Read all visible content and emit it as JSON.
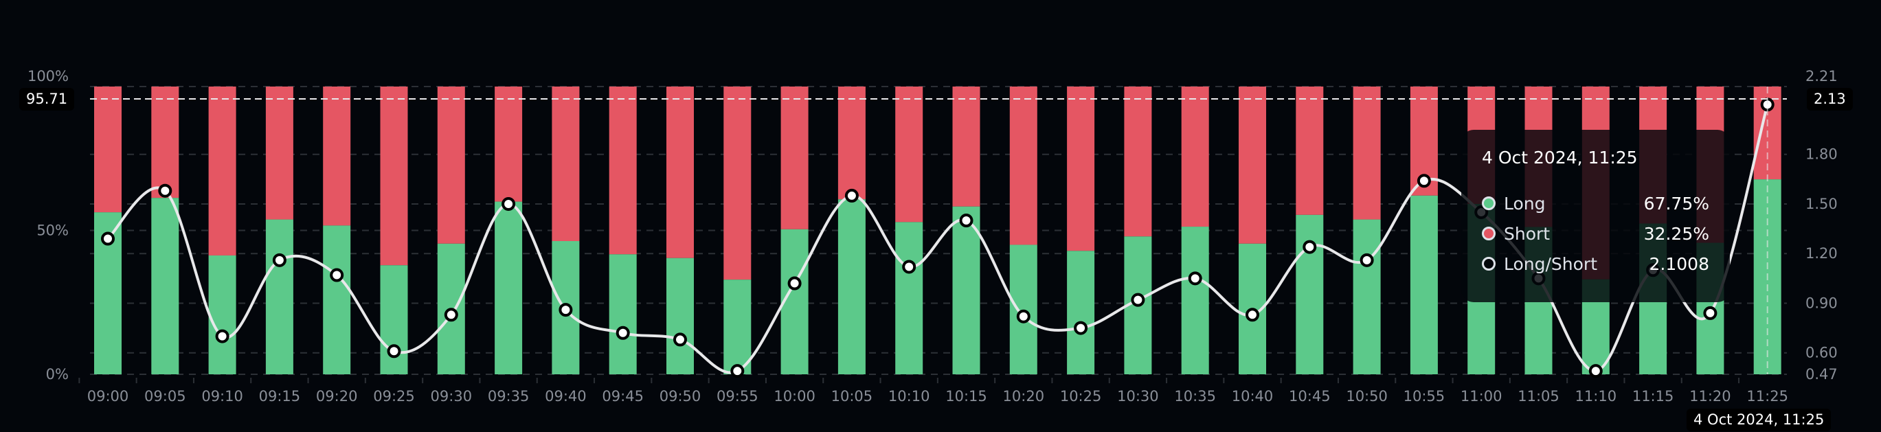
{
  "chart_data": {
    "type": "bar",
    "stacked": true,
    "categories": [
      "09:00",
      "09:05",
      "09:10",
      "09:15",
      "09:20",
      "09:25",
      "09:30",
      "09:35",
      "09:40",
      "09:45",
      "09:50",
      "09:55",
      "10:00",
      "10:05",
      "10:10",
      "10:15",
      "10:20",
      "10:25",
      "10:30",
      "10:35",
      "10:40",
      "10:45",
      "10:50",
      "10:55",
      "11:00",
      "11:05",
      "11:10",
      "11:15",
      "11:20",
      "11:25"
    ],
    "series": [
      {
        "name": "Long",
        "unit": "%",
        "color": "#5cc98a",
        "values": [
          56.3,
          61.3,
          41.3,
          53.8,
          51.7,
          37.9,
          45.4,
          60.0,
          46.3,
          41.7,
          40.4,
          32.9,
          50.4,
          60.8,
          52.9,
          58.3,
          45.0,
          42.9,
          47.9,
          51.3,
          45.4,
          55.4,
          53.8,
          62.1,
          59.2,
          51.2,
          33.0,
          52.4,
          45.7,
          67.75
        ]
      },
      {
        "name": "Short",
        "unit": "%",
        "color": "#e55663",
        "values": [
          43.7,
          38.7,
          58.7,
          46.2,
          48.3,
          62.1,
          54.6,
          40.0,
          53.7,
          58.3,
          59.6,
          67.1,
          49.6,
          39.2,
          47.1,
          41.7,
          55.0,
          57.1,
          52.1,
          48.7,
          54.6,
          44.6,
          46.2,
          37.9,
          40.8,
          48.8,
          67.0,
          47.6,
          54.3,
          32.25
        ]
      },
      {
        "name": "Long/Short",
        "type": "line",
        "axis": "right",
        "color": "#e8e8ea",
        "values": [
          1.29,
          1.58,
          0.7,
          1.16,
          1.07,
          0.61,
          0.83,
          1.5,
          0.86,
          0.72,
          0.68,
          0.49,
          1.02,
          1.55,
          1.12,
          1.4,
          0.82,
          0.75,
          0.92,
          1.05,
          0.83,
          1.24,
          1.16,
          1.64,
          1.45,
          1.05,
          0.49,
          1.1,
          0.84,
          2.1008
        ]
      }
    ],
    "left_axis": {
      "ylim": [
        0,
        100
      ],
      "ticks": [
        "0%",
        "50%",
        "100%"
      ],
      "tick_values": [
        0,
        50,
        100
      ]
    },
    "right_axis": {
      "ylim": [
        0.47,
        2.21
      ],
      "ticks": [
        "0.47",
        "0.60",
        "0.90",
        "1.20",
        "1.50",
        "1.80",
        "2.21"
      ],
      "tick_values": [
        0.47,
        0.6,
        0.9,
        1.2,
        1.5,
        1.8,
        2.21
      ]
    },
    "grid": true,
    "crosshair": {
      "left_label": "95.71",
      "right_label": "2.13",
      "left_value": 95.71,
      "right_value": 2.13,
      "x_label": "4 Oct 2024, 11:25",
      "index": 29
    },
    "tooltip": {
      "title": "4 Oct 2024, 11:25",
      "rows": [
        {
          "label": "Long",
          "value": "67.75%",
          "color": "#5cc98a"
        },
        {
          "label": "Short",
          "value": "32.25%",
          "color": "#e55663"
        },
        {
          "label": "Long/Short",
          "value": "2.1008",
          "color": "#03060b"
        }
      ]
    }
  }
}
